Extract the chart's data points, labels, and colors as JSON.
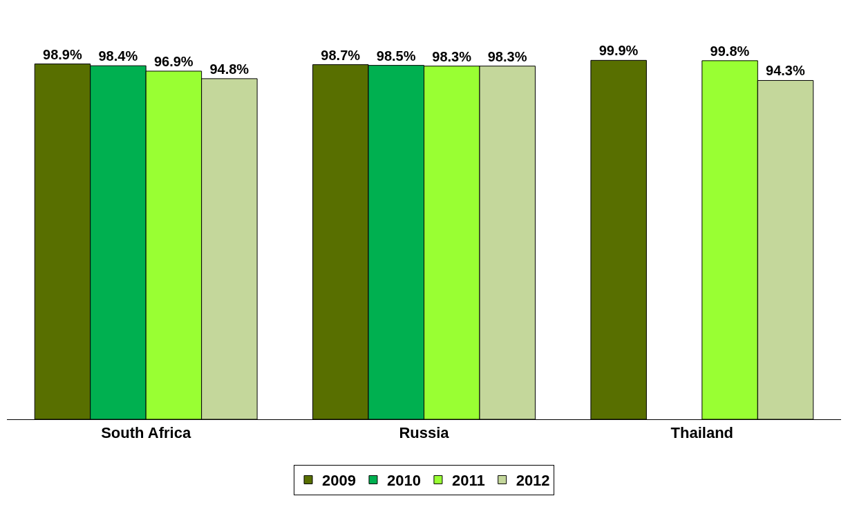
{
  "chart_data": {
    "type": "bar",
    "categories": [
      "South Africa",
      "Russia",
      "Thailand"
    ],
    "series": [
      {
        "name": "2009",
        "color": "#586f00",
        "values": [
          98.9,
          98.7,
          99.9
        ],
        "value_labels": [
          "98.9%",
          "98.7%",
          "99.9%"
        ]
      },
      {
        "name": "2010",
        "color": "#00b050",
        "values": [
          98.4,
          98.5,
          null
        ],
        "value_labels": [
          "98.4%",
          "98.5%",
          null
        ]
      },
      {
        "name": "2011",
        "color": "#99ff33",
        "values": [
          96.9,
          98.3,
          99.8
        ],
        "value_labels": [
          "96.9%",
          "98.3%",
          "99.8%"
        ]
      },
      {
        "name": "2012",
        "color": "#c4d79b",
        "values": [
          94.8,
          98.3,
          94.3
        ],
        "value_labels": [
          "94.8%",
          "98.3%",
          "94.3%"
        ]
      }
    ],
    "tick_labels": "x",
    "grid": false,
    "legend": "bottom"
  }
}
